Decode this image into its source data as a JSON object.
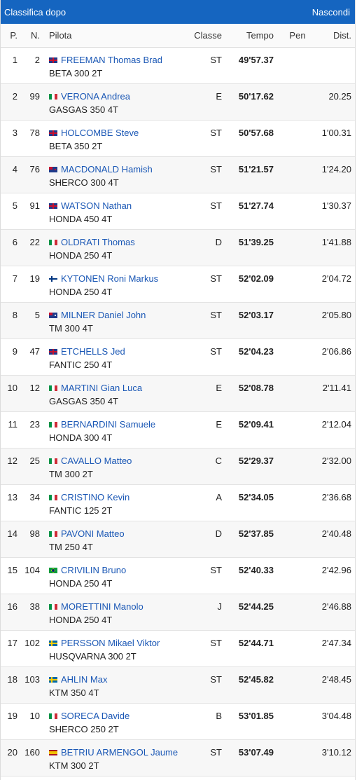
{
  "header": {
    "title": "Classifica dopo",
    "hide_label": "Nascondi"
  },
  "columns": {
    "pos": "P.",
    "num": "N.",
    "rider": "Pilota",
    "class": "Classe",
    "time": "Tempo",
    "pen": "Pen",
    "dist": "Dist."
  },
  "rows": [
    {
      "pos": "1",
      "num": "2",
      "flag": "uk",
      "name": "FREEMAN Thomas Brad",
      "bike": "BETA 300 2T",
      "cls": "ST",
      "time": "49'57.37",
      "pen": "",
      "dist": ""
    },
    {
      "pos": "2",
      "num": "99",
      "flag": "it",
      "name": "VERONA Andrea",
      "bike": "GASGAS 350 4T",
      "cls": "E",
      "time": "50'17.62",
      "pen": "",
      "dist": "20.25"
    },
    {
      "pos": "3",
      "num": "78",
      "flag": "uk",
      "name": "HOLCOMBE Steve",
      "bike": "BETA 350 2T",
      "cls": "ST",
      "time": "50'57.68",
      "pen": "",
      "dist": "1'00.31"
    },
    {
      "pos": "4",
      "num": "76",
      "flag": "nz",
      "name": "MACDONALD Hamish",
      "bike": "SHERCO 300 4T",
      "cls": "ST",
      "time": "51'21.57",
      "pen": "",
      "dist": "1'24.20"
    },
    {
      "pos": "5",
      "num": "91",
      "flag": "uk",
      "name": "WATSON Nathan",
      "bike": "HONDA 450 4T",
      "cls": "ST",
      "time": "51'27.74",
      "pen": "",
      "dist": "1'30.37"
    },
    {
      "pos": "6",
      "num": "22",
      "flag": "it",
      "name": "OLDRATI Thomas",
      "bike": "HONDA 250 4T",
      "cls": "D",
      "time": "51'39.25",
      "pen": "",
      "dist": "1'41.88"
    },
    {
      "pos": "7",
      "num": "19",
      "flag": "fi",
      "name": "KYTONEN Roni Markus",
      "bike": "HONDA 250 4T",
      "cls": "ST",
      "time": "52'02.09",
      "pen": "",
      "dist": "2'04.72"
    },
    {
      "pos": "8",
      "num": "5",
      "flag": "au",
      "name": "MILNER Daniel John",
      "bike": "TM 300 4T",
      "cls": "ST",
      "time": "52'03.17",
      "pen": "",
      "dist": "2'05.80"
    },
    {
      "pos": "9",
      "num": "47",
      "flag": "uk",
      "name": "ETCHELLS Jed",
      "bike": "FANTIC 250 4T",
      "cls": "ST",
      "time": "52'04.23",
      "pen": "",
      "dist": "2'06.86"
    },
    {
      "pos": "10",
      "num": "12",
      "flag": "it",
      "name": "MARTINI Gian Luca",
      "bike": "GASGAS 350 4T",
      "cls": "E",
      "time": "52'08.78",
      "pen": "",
      "dist": "2'11.41"
    },
    {
      "pos": "11",
      "num": "23",
      "flag": "it",
      "name": "BERNARDINI Samuele",
      "bike": "HONDA 300 4T",
      "cls": "E",
      "time": "52'09.41",
      "pen": "",
      "dist": "2'12.04"
    },
    {
      "pos": "12",
      "num": "25",
      "flag": "it",
      "name": "CAVALLO Matteo",
      "bike": "TM 300 2T",
      "cls": "C",
      "time": "52'29.37",
      "pen": "",
      "dist": "2'32.00"
    },
    {
      "pos": "13",
      "num": "34",
      "flag": "it",
      "name": "CRISTINO Kevin",
      "bike": "FANTIC 125 2T",
      "cls": "A",
      "time": "52'34.05",
      "pen": "",
      "dist": "2'36.68"
    },
    {
      "pos": "14",
      "num": "98",
      "flag": "it",
      "name": "PAVONI Matteo",
      "bike": "TM 250 4T",
      "cls": "D",
      "time": "52'37.85",
      "pen": "",
      "dist": "2'40.48"
    },
    {
      "pos": "15",
      "num": "104",
      "flag": "br",
      "name": "CRIVILIN Bruno",
      "bike": "HONDA 250 4T",
      "cls": "ST",
      "time": "52'40.33",
      "pen": "",
      "dist": "2'42.96"
    },
    {
      "pos": "16",
      "num": "38",
      "flag": "it",
      "name": "MORETTINI Manolo",
      "bike": "HONDA 250 4T",
      "cls": "J",
      "time": "52'44.25",
      "pen": "",
      "dist": "2'46.88"
    },
    {
      "pos": "17",
      "num": "102",
      "flag": "se",
      "name": "PERSSON Mikael Viktor",
      "bike": "HUSQVARNA 300 2T",
      "cls": "ST",
      "time": "52'44.71",
      "pen": "",
      "dist": "2'47.34"
    },
    {
      "pos": "18",
      "num": "103",
      "flag": "se",
      "name": "AHLIN Max",
      "bike": "KTM 350 4T",
      "cls": "ST",
      "time": "52'45.82",
      "pen": "",
      "dist": "2'48.45"
    },
    {
      "pos": "19",
      "num": "10",
      "flag": "it",
      "name": "SORECA Davide",
      "bike": "SHERCO 250 2T",
      "cls": "B",
      "time": "53'01.85",
      "pen": "",
      "dist": "3'04.48"
    },
    {
      "pos": "20",
      "num": "160",
      "flag": "es",
      "name": "BETRIU ARMENGOL Jaume",
      "bike": "KTM 300 2T",
      "cls": "ST",
      "time": "53'07.49",
      "pen": "",
      "dist": "3'10.12"
    }
  ]
}
